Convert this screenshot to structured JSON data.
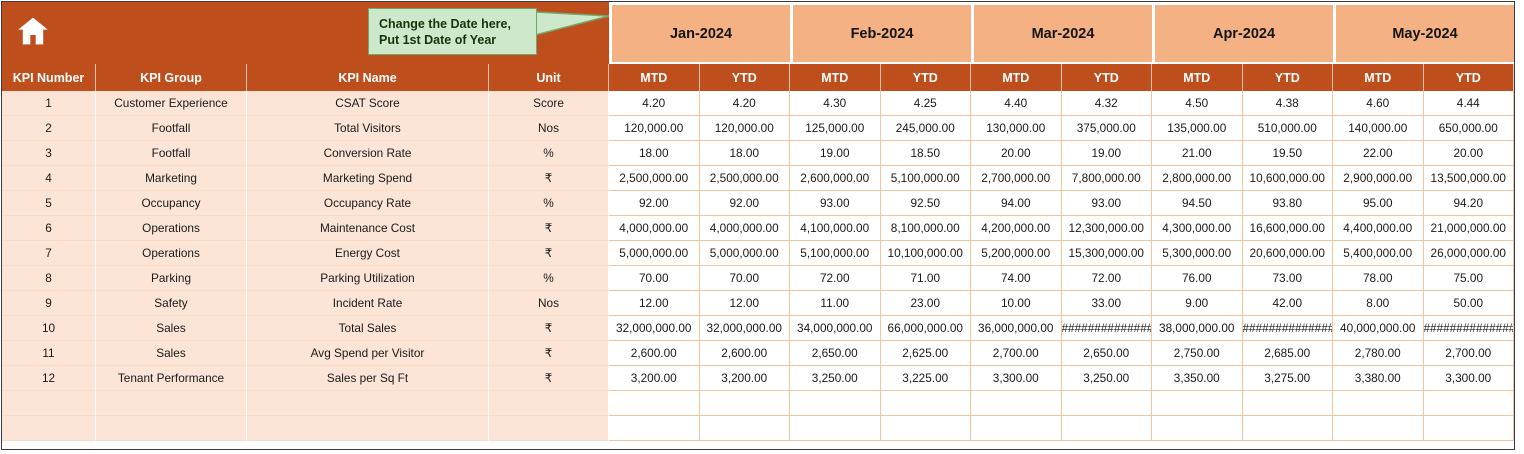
{
  "colors": {
    "accent": "#BE4F1D",
    "month-band": "#F4B183",
    "light-band": "#FCE4D6",
    "grid": "#F0C49F",
    "callout-bg": "#CDE8CA",
    "callout-border": "#6FA96B",
    "callout-text": "#16330e",
    "outer-border": "#3a3a4a"
  },
  "callout": {
    "line1": "Change the Date here,",
    "line2": "Put 1st Date of Year"
  },
  "table": {
    "months": [
      "Jan-2024",
      "Feb-2024",
      "Mar-2024",
      "Apr-2024",
      "May-2024"
    ],
    "sub_headers": [
      "MTD",
      "YTD"
    ],
    "left_headers": [
      "KPI Number",
      "KPI Group",
      "KPI Name",
      "Unit"
    ],
    "empty_rows": 2,
    "rows": [
      {
        "num": "1",
        "group": "Customer Experience",
        "name": "CSAT Score",
        "unit": "Score",
        "values": [
          "4.20",
          "4.20",
          "4.30",
          "4.25",
          "4.40",
          "4.32",
          "4.50",
          "4.38",
          "4.60",
          "4.44"
        ]
      },
      {
        "num": "2",
        "group": "Footfall",
        "name": "Total Visitors",
        "unit": "Nos",
        "values": [
          "120,000.00",
          "120,000.00",
          "125,000.00",
          "245,000.00",
          "130,000.00",
          "375,000.00",
          "135,000.00",
          "510,000.00",
          "140,000.00",
          "650,000.00"
        ]
      },
      {
        "num": "3",
        "group": "Footfall",
        "name": "Conversion Rate",
        "unit": "%",
        "values": [
          "18.00",
          "18.00",
          "19.00",
          "18.50",
          "20.00",
          "19.00",
          "21.00",
          "19.50",
          "22.00",
          "20.00"
        ]
      },
      {
        "num": "4",
        "group": "Marketing",
        "name": "Marketing Spend",
        "unit": "₹",
        "values": [
          "2,500,000.00",
          "2,500,000.00",
          "2,600,000.00",
          "5,100,000.00",
          "2,700,000.00",
          "7,800,000.00",
          "2,800,000.00",
          "10,600,000.00",
          "2,900,000.00",
          "13,500,000.00"
        ]
      },
      {
        "num": "5",
        "group": "Occupancy",
        "name": "Occupancy Rate",
        "unit": "%",
        "values": [
          "92.00",
          "92.00",
          "93.00",
          "92.50",
          "94.00",
          "93.00",
          "94.50",
          "93.80",
          "95.00",
          "94.20"
        ]
      },
      {
        "num": "6",
        "group": "Operations",
        "name": "Maintenance Cost",
        "unit": "₹",
        "values": [
          "4,000,000.00",
          "4,000,000.00",
          "4,100,000.00",
          "8,100,000.00",
          "4,200,000.00",
          "12,300,000.00",
          "4,300,000.00",
          "16,600,000.00",
          "4,400,000.00",
          "21,000,000.00"
        ]
      },
      {
        "num": "7",
        "group": "Operations",
        "name": "Energy Cost",
        "unit": "₹",
        "values": [
          "5,000,000.00",
          "5,000,000.00",
          "5,100,000.00",
          "10,100,000.00",
          "5,200,000.00",
          "15,300,000.00",
          "5,300,000.00",
          "20,600,000.00",
          "5,400,000.00",
          "26,000,000.00"
        ]
      },
      {
        "num": "8",
        "group": "Parking",
        "name": "Parking Utilization",
        "unit": "%",
        "values": [
          "70.00",
          "70.00",
          "72.00",
          "71.00",
          "74.00",
          "72.00",
          "76.00",
          "73.00",
          "78.00",
          "75.00"
        ]
      },
      {
        "num": "9",
        "group": "Safety",
        "name": "Incident Rate",
        "unit": "Nos",
        "values": [
          "12.00",
          "12.00",
          "11.00",
          "23.00",
          "10.00",
          "33.00",
          "9.00",
          "42.00",
          "8.00",
          "50.00"
        ]
      },
      {
        "num": "10",
        "group": "Sales",
        "name": "Total Sales",
        "unit": "₹",
        "values": [
          "32,000,000.00",
          "32,000,000.00",
          "34,000,000.00",
          "66,000,000.00",
          "36,000,000.00",
          "##############",
          "38,000,000.00",
          "##############",
          "40,000,000.00",
          "##############"
        ]
      },
      {
        "num": "11",
        "group": "Sales",
        "name": "Avg Spend per Visitor",
        "unit": "₹",
        "values": [
          "2,600.00",
          "2,600.00",
          "2,650.00",
          "2,625.00",
          "2,700.00",
          "2,650.00",
          "2,750.00",
          "2,685.00",
          "2,780.00",
          "2,700.00"
        ]
      },
      {
        "num": "12",
        "group": "Tenant Performance",
        "name": "Sales per Sq Ft",
        "unit": "₹",
        "values": [
          "3,200.00",
          "3,200.00",
          "3,250.00",
          "3,225.00",
          "3,300.00",
          "3,250.00",
          "3,350.00",
          "3,275.00",
          "3,380.00",
          "3,300.00"
        ]
      }
    ]
  }
}
